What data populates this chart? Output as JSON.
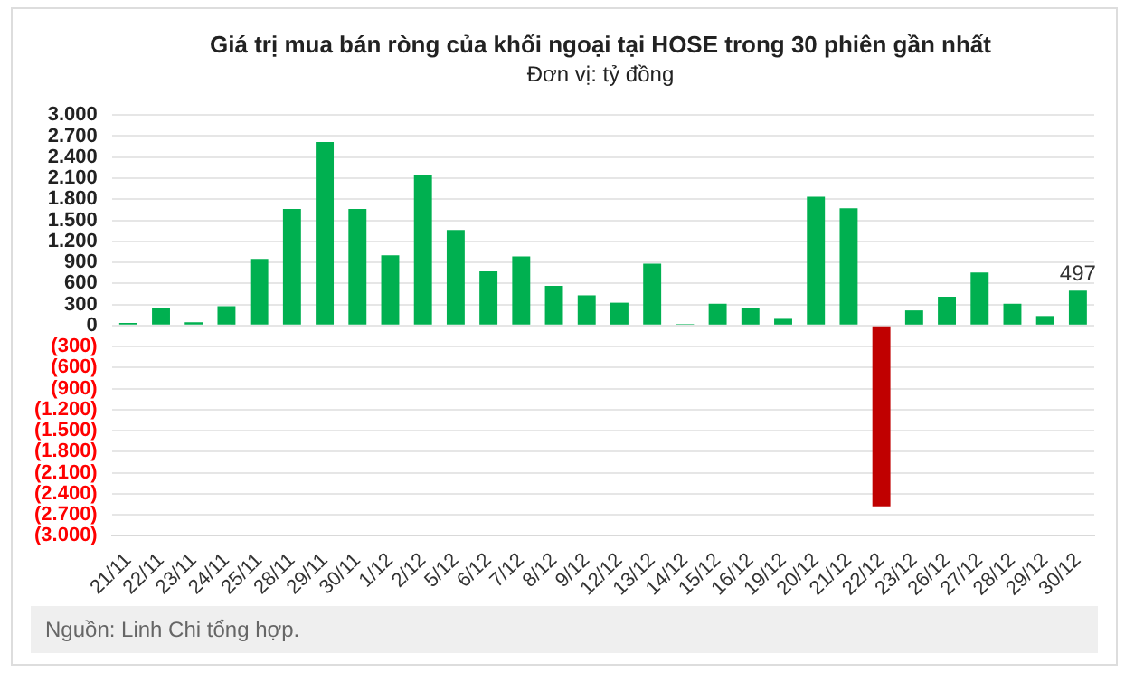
{
  "chart_data": {
    "type": "bar",
    "title": "Giá trị mua bán ròng của khối ngoại tại HOSE trong 30 phiên gần nhất",
    "subtitle": "Đơn vị: tỷ đồng",
    "categories": [
      "21/11",
      "22/11",
      "23/11",
      "24/11",
      "25/11",
      "28/11",
      "29/11",
      "30/11",
      "1/12",
      "2/12",
      "5/12",
      "6/12",
      "7/12",
      "8/12",
      "9/12",
      "12/12",
      "13/12",
      "14/12",
      "15/12",
      "16/12",
      "19/12",
      "20/12",
      "21/12",
      "22/12",
      "23/12",
      "26/12",
      "27/12",
      "28/12",
      "29/12",
      "30/12"
    ],
    "values": [
      35,
      250,
      45,
      275,
      950,
      1660,
      2615,
      1660,
      1000,
      2140,
      1360,
      770,
      985,
      565,
      430,
      325,
      880,
      20,
      310,
      255,
      95,
      1835,
      1670,
      -2580,
      215,
      410,
      755,
      310,
      135,
      497
    ],
    "colors": [
      "#00b050",
      "#00b050",
      "#00b050",
      "#00b050",
      "#00b050",
      "#00b050",
      "#00b050",
      "#00b050",
      "#00b050",
      "#00b050",
      "#00b050",
      "#00b050",
      "#00b050",
      "#00b050",
      "#00b050",
      "#00b050",
      "#00b050",
      "#00b050",
      "#00b050",
      "#00b050",
      "#00b050",
      "#00b050",
      "#00b050",
      "#c00000",
      "#00b050",
      "#00b050",
      "#00b050",
      "#00b050",
      "#00b050",
      "#00b050"
    ],
    "value_labels": [
      null,
      null,
      null,
      null,
      null,
      null,
      null,
      null,
      null,
      null,
      null,
      null,
      null,
      null,
      null,
      null,
      null,
      null,
      null,
      null,
      null,
      null,
      null,
      null,
      null,
      null,
      null,
      null,
      null,
      "497"
    ],
    "ylim": [
      -3000,
      3000
    ],
    "yticks": [
      {
        "value": 3000,
        "label": "3.000"
      },
      {
        "value": 2700,
        "label": "2.700"
      },
      {
        "value": 2400,
        "label": "2.400"
      },
      {
        "value": 2100,
        "label": "2.100"
      },
      {
        "value": 1800,
        "label": "1.800"
      },
      {
        "value": 1500,
        "label": "1.500"
      },
      {
        "value": 1200,
        "label": "1.200"
      },
      900,
      600,
      300,
      0,
      {
        "value": -300,
        "label": "(300)"
      },
      {
        "value": -600,
        "label": "(600)"
      },
      {
        "value": -900,
        "label": "(900)"
      },
      {
        "value": -1200,
        "label": "(1.200)"
      },
      {
        "value": -1500,
        "label": "(1.500)"
      },
      {
        "value": -1800,
        "label": "(1.800)"
      },
      {
        "value": -2100,
        "label": "(2.100)"
      },
      {
        "value": -2400,
        "label": "(2.400)"
      },
      {
        "value": -2700,
        "label": "(2.700)"
      },
      {
        "value": -3000,
        "label": "(3.000)"
      }
    ],
    "grid": "y",
    "legend": false,
    "annotations": [
      "Nguồn: Linh Chi tổng hợp."
    ]
  }
}
